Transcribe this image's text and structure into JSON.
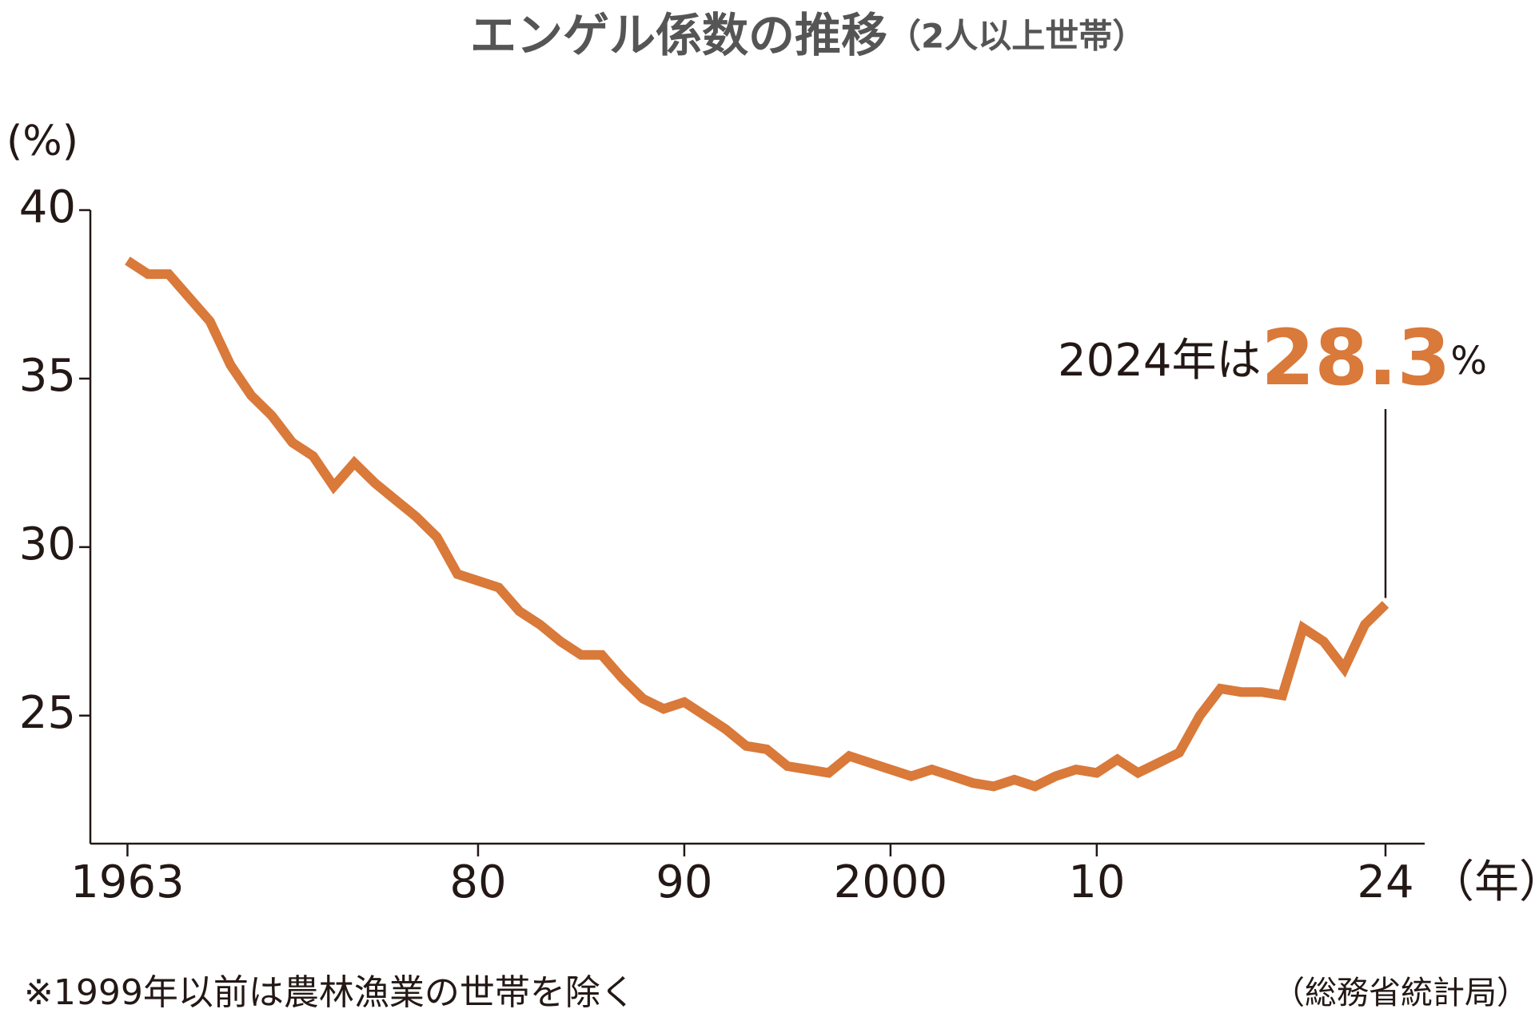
{
  "chart_data": {
    "type": "line",
    "title": "エンゲル係数の推移",
    "subtitle": "（2人以上世帯）",
    "ylabel": "(%)",
    "xlabel": "（年）",
    "x": [
      1963,
      1964,
      1965,
      1966,
      1967,
      1968,
      1969,
      1970,
      1971,
      1972,
      1973,
      1974,
      1975,
      1976,
      1977,
      1978,
      1979,
      1980,
      1981,
      1982,
      1983,
      1984,
      1985,
      1986,
      1987,
      1988,
      1989,
      1990,
      1991,
      1992,
      1993,
      1994,
      1995,
      1996,
      1997,
      1998,
      1999,
      2000,
      2001,
      2002,
      2003,
      2004,
      2005,
      2006,
      2007,
      2008,
      2009,
      2010,
      2011,
      2012,
      2013,
      2014,
      2015,
      2016,
      2017,
      2018,
      2019,
      2020,
      2021,
      2022,
      2023,
      2024
    ],
    "values": [
      38.5,
      38.1,
      38.1,
      37.4,
      36.7,
      35.4,
      34.5,
      33.9,
      33.1,
      32.7,
      31.8,
      32.5,
      31.9,
      31.4,
      30.9,
      30.3,
      29.2,
      29.0,
      28.8,
      28.1,
      27.7,
      27.2,
      26.8,
      26.8,
      26.1,
      25.5,
      25.2,
      25.4,
      25.0,
      24.6,
      24.1,
      24.0,
      23.5,
      23.4,
      23.3,
      23.8,
      23.6,
      23.4,
      23.2,
      23.4,
      23.2,
      23.0,
      22.9,
      23.1,
      22.9,
      23.2,
      23.4,
      23.3,
      23.7,
      23.3,
      23.6,
      23.9,
      25.0,
      25.8,
      25.7,
      25.7,
      25.6,
      27.6,
      27.2,
      26.4,
      27.7,
      28.3
    ],
    "color": "#d9793a",
    "xlim": [
      1961.2,
      2025.9
    ],
    "xticks": [
      1963,
      {
        "value": 1980,
        "label": "80"
      },
      {
        "value": 1990,
        "label": "90"
      },
      2000,
      {
        "value": 2010,
        "label": "10"
      },
      {
        "value": 2024,
        "label": "24"
      }
    ],
    "ylim": [
      21.2,
      40
    ],
    "yticks": [
      25,
      30,
      35,
      40
    ],
    "annotation": {
      "text": "2024年は",
      "value": 28.3,
      "unit": "%"
    },
    "note": "※1999年以前は農林漁業の世帯を除く",
    "source": "（総務省統計局）"
  }
}
